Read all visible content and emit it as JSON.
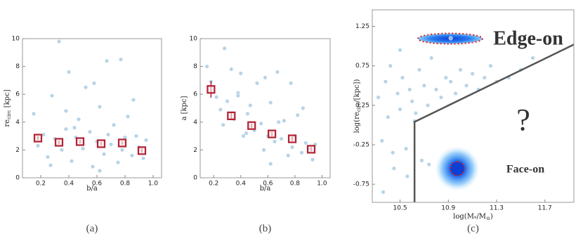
{
  "chart_data": [
    {
      "type": "scatter",
      "caption": "(a)",
      "xlabel": [
        {
          "text": "b/a"
        }
      ],
      "ylabel": [
        {
          "text": "re"
        },
        {
          "sub": "circ"
        },
        {
          "text": " [kpc]"
        }
      ],
      "xlim": [
        0.07,
        1.06
      ],
      "ylim": [
        0,
        10
      ],
      "xticks": [
        0.2,
        0.4,
        0.6,
        0.8,
        {
          "value": 1,
          "label": "1.0"
        }
      ],
      "yticks": [
        0,
        2,
        4,
        6,
        8,
        10
      ],
      "color": "#a9cce3",
      "x": [
        0.15,
        0.18,
        0.22,
        0.25,
        0.28,
        0.3,
        0.33,
        0.35,
        0.38,
        0.4,
        0.42,
        0.45,
        0.47,
        0.5,
        0.52,
        0.55,
        0.57,
        0.6,
        0.62,
        0.65,
        0.67,
        0.7,
        0.72,
        0.75,
        0.77,
        0.8,
        0.82,
        0.85,
        0.88,
        0.9,
        0.93,
        0.95,
        0.27,
        0.44,
        0.58,
        0.68,
        0.78,
        0.86,
        0.38,
        0.62
      ],
      "y": [
        4.6,
        2.3,
        3.1,
        1.5,
        5.9,
        2.8,
        9.8,
        2.0,
        3.5,
        7.6,
        1.2,
        2.9,
        4.2,
        2.1,
        6.5,
        3.3,
        0.8,
        2.6,
        5.1,
        1.7,
        8.4,
        2.4,
        3.8,
        1.1,
        8.5,
        2.9,
        4.4,
        1.6,
        3.0,
        2.2,
        1.4,
        2.7,
        0.9,
        3.6,
        6.8,
        3.1,
        2.0,
        5.6,
        4.8,
        0.5
      ],
      "binned": {
        "color": "#b22234",
        "x": [
          0.18,
          0.33,
          0.48,
          0.63,
          0.78,
          0.92
        ],
        "y": [
          2.85,
          2.55,
          2.6,
          2.45,
          2.5,
          1.95
        ],
        "yerr": [
          0.15,
          0.12,
          0.12,
          0.12,
          0.12,
          0.15
        ]
      }
    },
    {
      "type": "scatter",
      "caption": "(b)",
      "xlabel": [
        {
          "text": "b/a"
        }
      ],
      "ylabel": [
        {
          "text": "a [kpc]"
        }
      ],
      "xlim": [
        0.1,
        1.06
      ],
      "ylim": [
        0,
        10
      ],
      "xticks": [
        0.2,
        0.4,
        0.6,
        0.8,
        {
          "value": 1,
          "label": "1.0"
        }
      ],
      "yticks": [
        0,
        2,
        4,
        6,
        8,
        10
      ],
      "color": "#a9cce3",
      "x": [
        0.15,
        0.18,
        0.22,
        0.25,
        0.28,
        0.3,
        0.33,
        0.35,
        0.38,
        0.4,
        0.42,
        0.45,
        0.47,
        0.5,
        0.52,
        0.55,
        0.57,
        0.6,
        0.62,
        0.65,
        0.67,
        0.7,
        0.72,
        0.75,
        0.77,
        0.8,
        0.82,
        0.85,
        0.88,
        0.9,
        0.93,
        0.95,
        0.27,
        0.44,
        0.58,
        0.68,
        0.78,
        0.86,
        0.38,
        0.62
      ],
      "y": [
        8.0,
        6.9,
        5.8,
        4.9,
        9.3,
        5.5,
        7.8,
        4.2,
        6.1,
        7.5,
        3.0,
        4.6,
        5.2,
        3.4,
        6.8,
        3.9,
        2.0,
        3.0,
        5.4,
        2.6,
        7.6,
        2.8,
        4.1,
        1.6,
        6.8,
        3.0,
        4.5,
        1.8,
        2.5,
        2.1,
        1.3,
        2.4,
        3.8,
        3.2,
        7.2,
        4.0,
        2.2,
        5.0,
        5.9,
        1.0
      ],
      "binned": {
        "color": "#b22234",
        "x": [
          0.18,
          0.33,
          0.48,
          0.63,
          0.78,
          0.92
        ],
        "y": [
          6.35,
          4.45,
          3.75,
          3.15,
          2.8,
          2.05
        ],
        "yerr": [
          0.6,
          0.2,
          0.15,
          0.15,
          0.15,
          0.15
        ]
      }
    },
    {
      "type": "scatter",
      "caption": "(c)",
      "xlabel": [
        {
          "text": "log(M"
        },
        {
          "sub": "*"
        },
        {
          "text": "/M"
        },
        {
          "sub": "⊙"
        },
        {
          "text": ")"
        }
      ],
      "ylabel": [
        {
          "text": "log(re"
        },
        {
          "sub": "circ"
        },
        {
          "text": "/[kpc])"
        }
      ],
      "xlim": [
        10.27,
        11.94
      ],
      "ylim": [
        -0.98,
        1.46
      ],
      "xticks": [
        10.5,
        10.9,
        11.3,
        11.7
      ],
      "yticks": [
        -0.75,
        -0.25,
        0.25,
        0.75,
        1.25
      ],
      "color": "#a9cce3",
      "x": [
        10.32,
        10.35,
        10.38,
        10.4,
        10.42,
        10.45,
        10.48,
        10.5,
        10.52,
        10.55,
        10.58,
        10.6,
        10.63,
        10.66,
        10.7,
        10.73,
        10.76,
        10.8,
        10.84,
        10.88,
        10.92,
        10.96,
        11.0,
        11.05,
        11.1,
        11.15,
        11.2,
        11.25,
        11.3,
        11.4,
        11.5,
        11.6,
        10.36,
        10.44,
        10.5,
        10.56,
        10.62,
        10.68,
        10.74,
        10.92
      ],
      "y": [
        0.35,
        -0.2,
        0.55,
        0.1,
        0.75,
        -0.55,
        0.4,
        0.2,
        0.6,
        -0.3,
        0.45,
        0.3,
        0.15,
        0.7,
        0.5,
        0.25,
        0.85,
        0.45,
        0.35,
        0.6,
        0.55,
        0.4,
        0.7,
        0.5,
        0.65,
        0.45,
        0.6,
        0.75,
        0.55,
        0.6,
        0.7,
        0.85,
        -0.85,
        -0.35,
        0.95,
        -0.65,
        0.05,
        -0.45,
        -0.5,
        1.1
      ],
      "boundary": {
        "color": "#555555",
        "x": [
          10.62,
          10.62,
          11.94
        ],
        "y": [
          -0.98,
          0.04,
          1.02
        ]
      },
      "annotations": [
        "Edge-on",
        "?",
        "Face-on"
      ]
    }
  ]
}
